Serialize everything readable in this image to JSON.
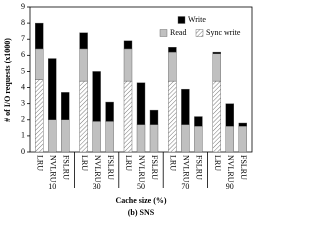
{
  "chart_data": {
    "type": "stacked_bar",
    "y_label": "# of I/O requests (x1000)",
    "x_label": "Cache size (%)",
    "subtitle": "(b) SNS",
    "groups": [
      "10",
      "30",
      "50",
      "70",
      "90"
    ],
    "categories": [
      "LRU",
      "NVLRU",
      "FSLRU",
      "LRU",
      "NVLRU",
      "FSLRU",
      "LRU",
      "NVLRU",
      "FSLRU",
      "LRU",
      "NVLRU",
      "FSLRU",
      "LRU",
      "NVLRU",
      "FSLRU"
    ],
    "series": [
      {
        "name": "Sync write",
        "color": "#ffffff",
        "pattern": "hatch",
        "values": [
          4.5,
          0,
          0,
          4.4,
          0,
          0,
          4.4,
          0,
          0,
          4.4,
          0,
          0,
          4.4,
          0,
          0
        ]
      },
      {
        "name": "Read",
        "color": "#c0c0c0",
        "values": [
          1.9,
          2.0,
          2.0,
          2.0,
          1.9,
          1.9,
          2.0,
          1.7,
          1.7,
          1.8,
          1.7,
          1.6,
          1.7,
          1.6,
          1.6
        ]
      },
      {
        "name": "Write",
        "color": "#000000",
        "values": [
          1.6,
          3.8,
          1.7,
          1.0,
          3.1,
          1.2,
          0.5,
          2.6,
          0.9,
          0.3,
          2.2,
          0.6,
          0.1,
          1.4,
          0.2
        ]
      }
    ],
    "legend_order": [
      "Write",
      "Read",
      "Sync write"
    ],
    "legend": "top-right",
    "ylim": [
      0,
      9
    ],
    "yticks": [
      0,
      1,
      2,
      3,
      4,
      5,
      6,
      7,
      8,
      9
    ]
  }
}
